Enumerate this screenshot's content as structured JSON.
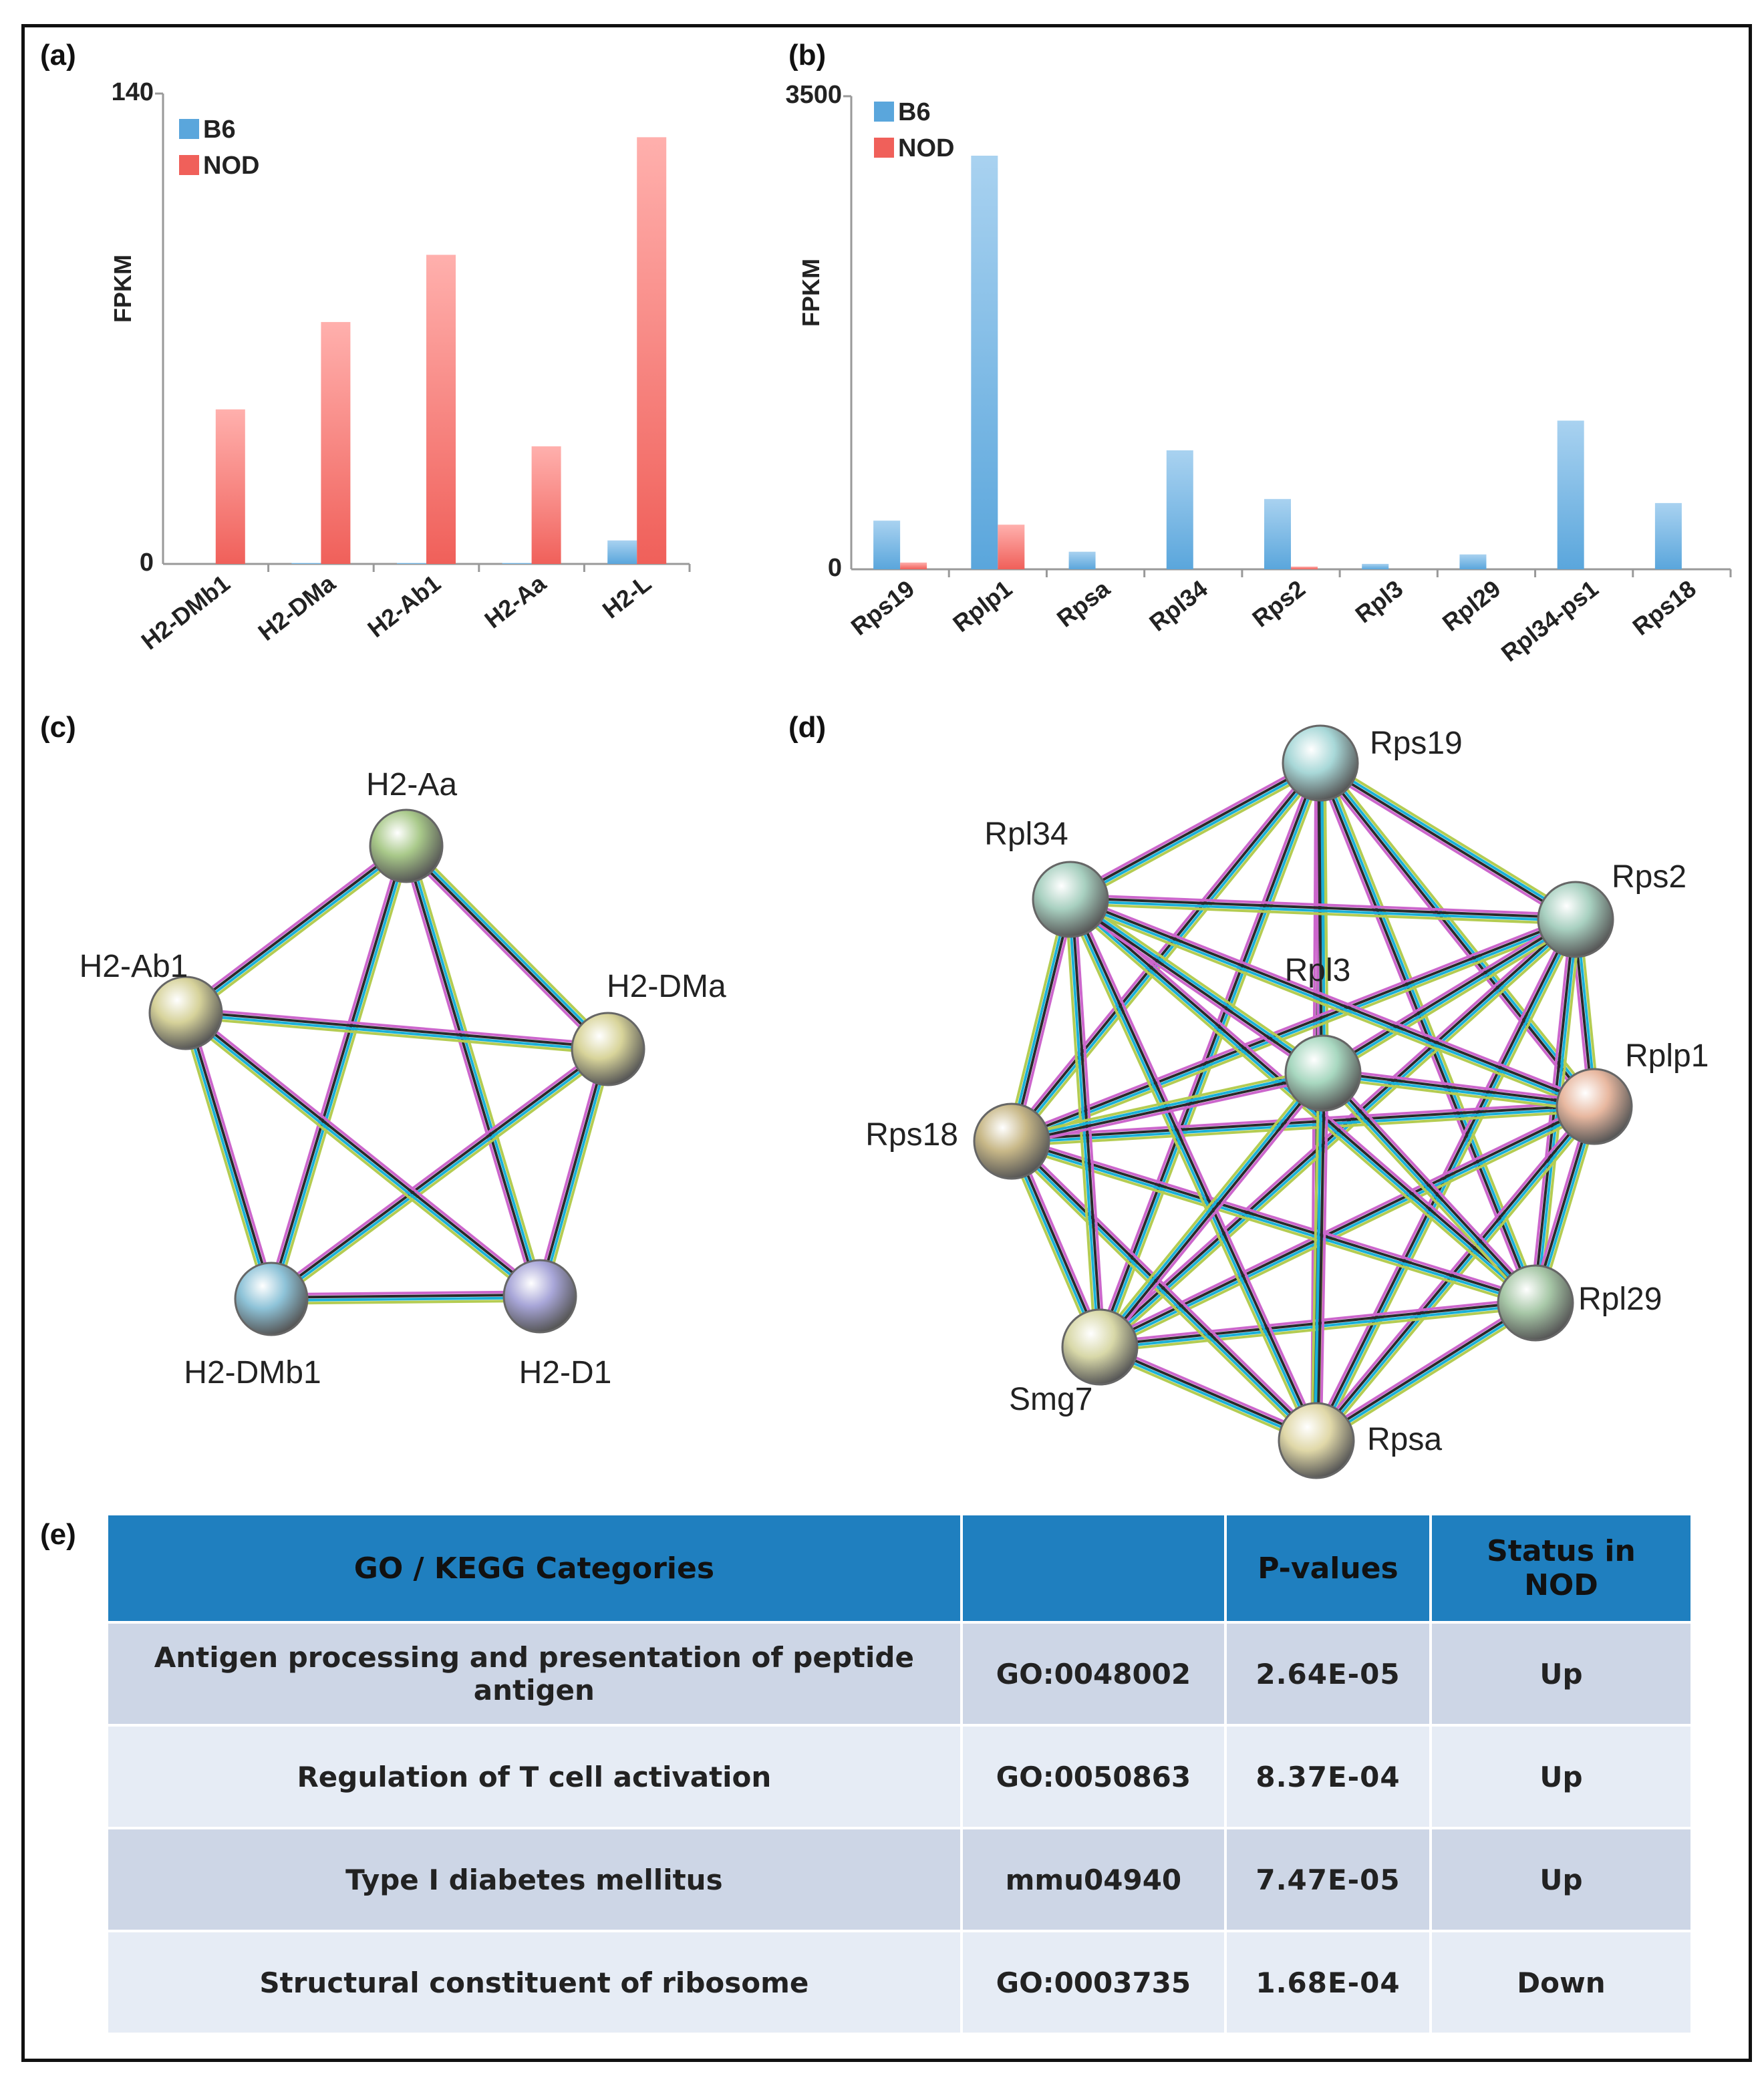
{
  "labels": {
    "a": "(a)",
    "b": "(b)",
    "c": "(c)",
    "d": "(d)",
    "e": "(e)"
  },
  "colors": {
    "b6": "#5aa6dc",
    "nod": "#f0605a"
  },
  "chart_data": [
    {
      "type": "bar",
      "panel": "a",
      "ylabel": "FPKM",
      "ylim": [
        0,
        140
      ],
      "yticks": [
        "0",
        "140"
      ],
      "categories": [
        "H2-DMb1",
        "H2-DMa",
        "H2-Ab1",
        "H2-Aa",
        "H2-L"
      ],
      "series": [
        {
          "name": "B6",
          "values": [
            0,
            0.3,
            0.3,
            0.3,
            7
          ]
        },
        {
          "name": "NOD",
          "values": [
            46,
            72,
            92,
            35,
            127
          ]
        }
      ],
      "legend": "top-left"
    },
    {
      "type": "bar",
      "panel": "b",
      "ylabel": "FPKM",
      "ylim": [
        0,
        3500
      ],
      "yticks": [
        "0",
        "3500"
      ],
      "categories": [
        "Rps19",
        "Rplp1",
        "Rpsa",
        "Rpl34",
        "Rps2",
        "Rpl3",
        "Rpl29",
        "Rpl34-ps1",
        "Rps18"
      ],
      "series": [
        {
          "name": "B6",
          "values": [
            360,
            3060,
            130,
            880,
            520,
            40,
            110,
            1100,
            490
          ]
        },
        {
          "name": "NOD",
          "values": [
            50,
            330,
            0,
            0,
            20,
            0,
            0,
            0,
            0
          ]
        }
      ],
      "legend": "top-left"
    }
  ],
  "network_c": {
    "nodes": [
      "H2-Aa",
      "H2-DMa",
      "H2-D1",
      "H2-DMb1",
      "H2-Ab1"
    ]
  },
  "network_d": {
    "nodes": [
      "Rps19",
      "Rps2",
      "Rplp1",
      "Rpl29",
      "Rpsa",
      "Smg7",
      "Rps18",
      "Rpl34",
      "Rpl3"
    ]
  },
  "table": {
    "headers": [
      "GO / KEGG Categories",
      "",
      "P-values",
      "Status in NOD"
    ],
    "rows": [
      {
        "category": "Antigen processing and presentation of peptide antigen",
        "id": "GO:0048002",
        "pvalue": "2.64E-05",
        "status": "Up"
      },
      {
        "category": "Regulation of T cell activation",
        "id": "GO:0050863",
        "pvalue": "8.37E-04",
        "status": "Up"
      },
      {
        "category": "Type I diabetes mellitus",
        "id": "mmu04940",
        "pvalue": "7.47E-05",
        "status": "Up"
      },
      {
        "category": "Structural constituent of ribosome",
        "id": "GO:0003735",
        "pvalue": "1.68E-04",
        "status": "Down"
      }
    ]
  }
}
